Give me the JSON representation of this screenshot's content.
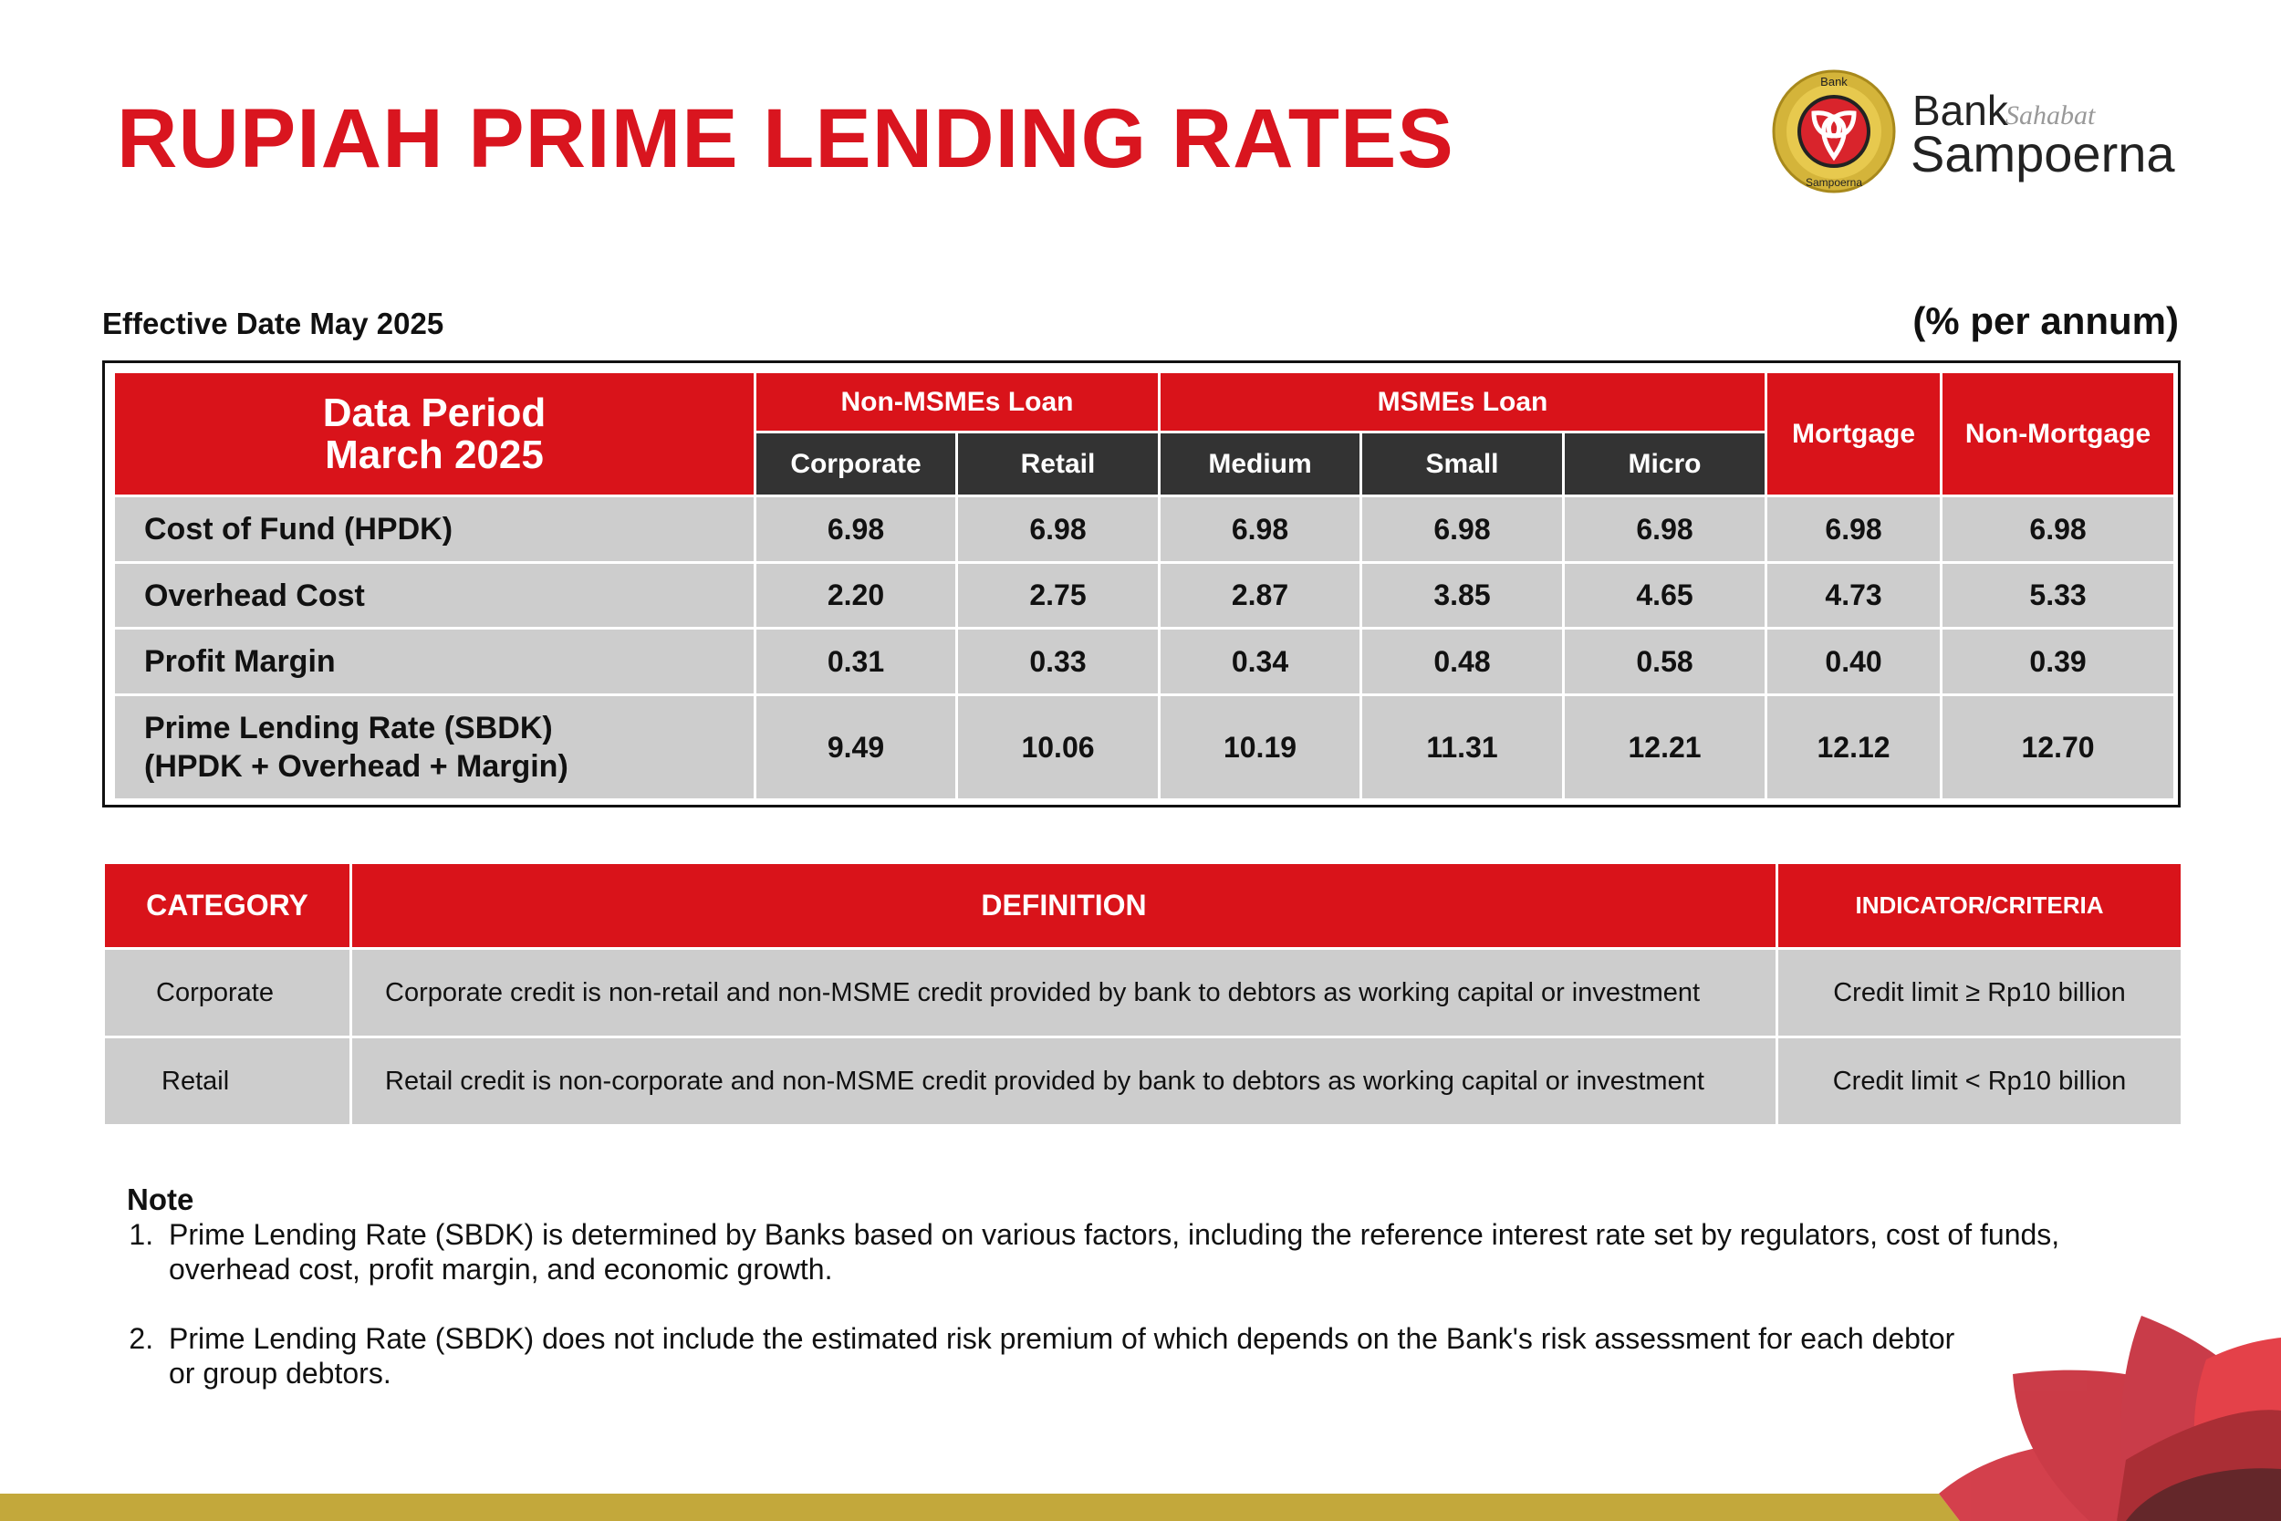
{
  "title": "RUPIAH PRIME LENDING RATES",
  "logo": {
    "emblem_top": "Bank",
    "emblem_bottom_small": "sahabat",
    "emblem_bottom": "Sampoerna",
    "line1": "Bank",
    "line1_script": "Sahabat",
    "line2": "Sampoerna"
  },
  "effective_date": "Effective Date May 2025",
  "unit": "(% per annum)",
  "rates_table": {
    "period_line1": "Data Period",
    "period_line2": "March 2025",
    "groups": [
      "Non-MSMEs Loan",
      "MSMEs Loan",
      "Mortgage",
      "Non-Mortgage"
    ],
    "subcolumns": [
      "Corporate",
      "Retail",
      "Medium",
      "Small",
      "Micro"
    ],
    "rows": [
      {
        "label": "Cost of Fund (HPDK)",
        "label2": "",
        "values": [
          "6.98",
          "6.98",
          "6.98",
          "6.98",
          "6.98",
          "6.98",
          "6.98"
        ]
      },
      {
        "label": "Overhead Cost",
        "label2": "",
        "values": [
          "2.20",
          "2.75",
          "2.87",
          "3.85",
          "4.65",
          "4.73",
          "5.33"
        ]
      },
      {
        "label": "Profit Margin",
        "label2": "",
        "values": [
          "0.31",
          "0.33",
          "0.34",
          "0.48",
          "0.58",
          "0.40",
          "0.39"
        ]
      },
      {
        "label": "Prime Lending Rate (SBDK)",
        "label2": "(HPDK + Overhead + Margin)",
        "values": [
          "9.49",
          "10.06",
          "10.19",
          "11.31",
          "12.21",
          "12.12",
          "12.70"
        ]
      }
    ]
  },
  "definition_table": {
    "headers": [
      "CATEGORY",
      "DEFINITION",
      "INDICATOR/CRITERIA"
    ],
    "rows": [
      {
        "category": "Corporate",
        "definition": "Corporate credit is non-retail and non-MSME credit provided by bank to debtors as working capital or investment",
        "criteria": "Credit limit ≥ Rp10 billion"
      },
      {
        "category": "Retail",
        "definition": "Retail credit is non-corporate and non-MSME credit provided by bank to debtors as working capital or investment",
        "criteria": "Credit limit < Rp10 billion"
      }
    ]
  },
  "note": {
    "heading": "Note",
    "items": [
      "Prime Lending Rate (SBDK) is determined by Banks based on various factors, including the reference interest rate set by regulators, cost of funds, overhead cost, profit margin, and economic growth.",
      "Prime Lending Rate (SBDK) does not include the estimated risk premium of which depends on the Bank's risk assessment for each debtor or group debtors."
    ]
  },
  "colors": {
    "brand_red": "#d9131a",
    "header_dark": "#333333",
    "cell_gray": "#cdcdcd",
    "gold": "#c3a83b"
  }
}
